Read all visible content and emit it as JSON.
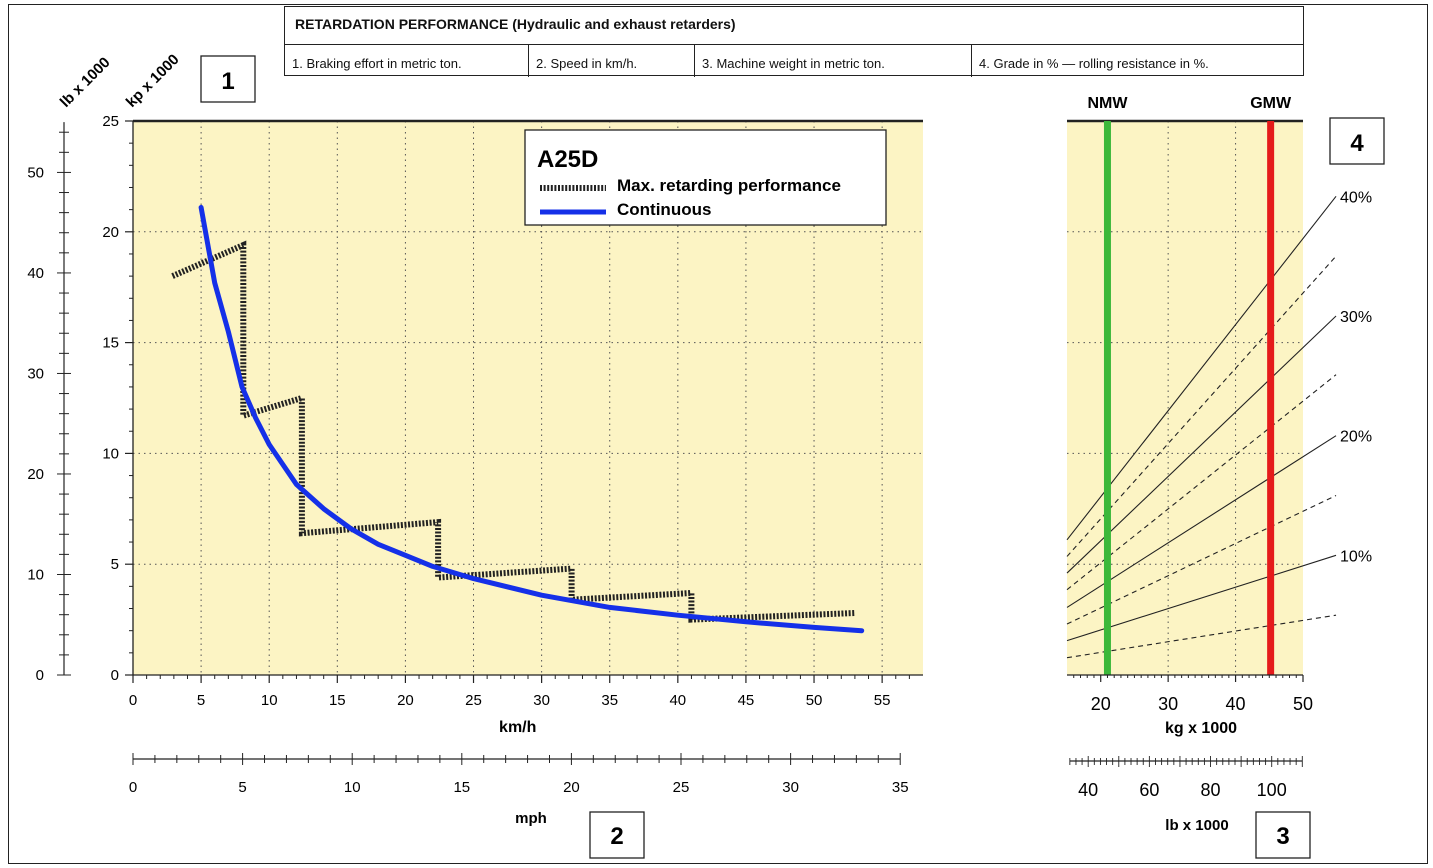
{
  "header": {
    "title": "RETARDATION PERFORMANCE (Hydraulic and exhaust retarders)",
    "items": [
      "1. Braking effort in metric ton.",
      "2. Speed in km/h.",
      "3. Machine weight in metric ton.",
      "4. Grade in % — rolling resistance in %."
    ]
  },
  "boxes": {
    "b1": "1",
    "b2": "2",
    "b3": "3",
    "b4": "4"
  },
  "colors": {
    "panel_bg": "#fcf4c4",
    "continuous": "#1530e8",
    "nmw": "#3cb83a",
    "gmw": "#e51b1b",
    "dotted": "#222222"
  },
  "chart_data": [
    {
      "type": "line",
      "title": "A25D",
      "xlabel": "km/h",
      "ylabel": "kp x 1000",
      "ylabel_secondary": "lb x 1000",
      "xlim": [
        0,
        58
      ],
      "ylim": [
        0,
        25
      ],
      "x_ticks": [
        "0",
        "5",
        "10",
        "15",
        "20",
        "25",
        "30",
        "35",
        "40",
        "45",
        "50",
        "55"
      ],
      "y_ticks": [
        "0",
        "5",
        "10",
        "15",
        "20",
        "25"
      ],
      "y2_ticks": [
        "0",
        "10",
        "20",
        "30",
        "40",
        "50"
      ],
      "mph_axis": {
        "label": "mph",
        "ticks": [
          "0",
          "5",
          "10",
          "15",
          "20",
          "25",
          "30",
          "35"
        ]
      },
      "grid": true,
      "legend": "top-right",
      "series": [
        {
          "name": "Max. retarding performance",
          "style": "dotted",
          "x": [
            2.9,
            8.1,
            8.1,
            12.4,
            12.4,
            22.4,
            22.4,
            32.2,
            32.2,
            41.0,
            41.0,
            53.0
          ],
          "y": [
            18,
            19.4,
            11.7,
            12.5,
            6.4,
            6.9,
            4.4,
            4.8,
            3.4,
            3.7,
            2.5,
            2.8
          ]
        },
        {
          "name": "Continuous",
          "style": "solid",
          "x": [
            5,
            6,
            7,
            8,
            9,
            10,
            12,
            14,
            16,
            18,
            20,
            22,
            25,
            30,
            35,
            40,
            45,
            50,
            53.5
          ],
          "y": [
            21.1,
            17.7,
            15.5,
            13,
            11.6,
            10.4,
            8.6,
            7.5,
            6.6,
            5.9,
            5.4,
            4.9,
            4.35,
            3.6,
            3.05,
            2.7,
            2.4,
            2.15,
            2.0
          ]
        }
      ]
    },
    {
      "type": "line",
      "title": "",
      "xlabel": "kg x 1000",
      "xlabel_secondary": "lb x 1000",
      "xlim": [
        15,
        50
      ],
      "x_ticks": [
        "20",
        "30",
        "40",
        "50"
      ],
      "lb_ticks": [
        "40",
        "60",
        "80",
        "100"
      ],
      "markers": [
        {
          "name": "NMW",
          "x": 21
        },
        {
          "name": "GMW",
          "x": 45.2
        }
      ],
      "grade_lines": [
        {
          "label": "40%",
          "solid": true,
          "y_start": 6.1,
          "y_end": 21.6
        },
        {
          "label": "",
          "solid": false,
          "y_start": 5.35,
          "y_end": 18.9
        },
        {
          "label": "30%",
          "solid": true,
          "y_start": 4.6,
          "y_end": 16.2
        },
        {
          "label": "",
          "solid": false,
          "y_start": 3.85,
          "y_end": 13.55
        },
        {
          "label": "20%",
          "solid": true,
          "y_start": 3.05,
          "y_end": 10.8
        },
        {
          "label": "",
          "solid": false,
          "y_start": 2.3,
          "y_end": 8.1
        },
        {
          "label": "10%",
          "solid": true,
          "y_start": 1.55,
          "y_end": 5.4
        },
        {
          "label": "",
          "solid": false,
          "y_start": 0.78,
          "y_end": 2.7
        }
      ]
    }
  ]
}
